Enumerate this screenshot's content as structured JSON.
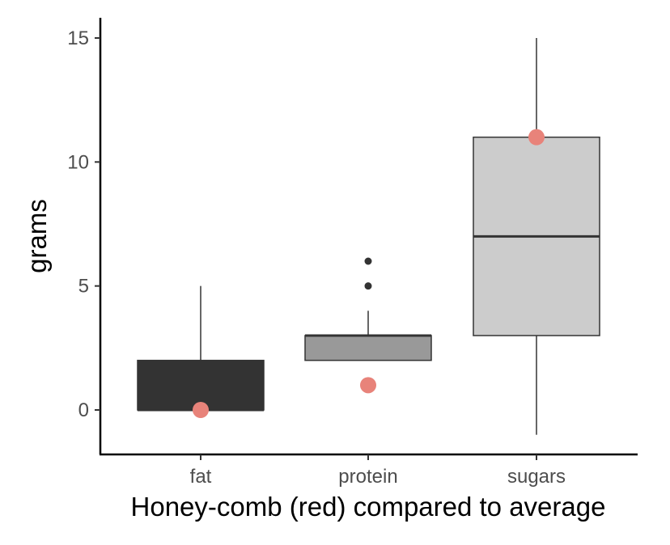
{
  "chart_data": {
    "type": "box",
    "title": "",
    "xlabel": "Honey-comb (red) compared to average",
    "ylabel": "grams",
    "categories": [
      "fat",
      "protein",
      "sugars"
    ],
    "ylim": [
      -1.8,
      15.8
    ],
    "yticks": [
      0,
      5,
      10,
      15
    ],
    "boxes": [
      {
        "category": "fat",
        "whisker_low": 0,
        "q1": 0,
        "median": 0,
        "q3": 2,
        "whisker_high": 5,
        "outliers": [],
        "fill": "#333333"
      },
      {
        "category": "protein",
        "whisker_low": 2,
        "q1": 2,
        "median": 3,
        "q3": 3,
        "whisker_high": 4,
        "outliers": [
          5,
          6
        ],
        "fill": "#999999"
      },
      {
        "category": "sugars",
        "whisker_low": -1,
        "q1": 3,
        "median": 7,
        "q3": 11,
        "whisker_high": 15,
        "outliers": [],
        "fill": "#cccccc"
      }
    ],
    "highlight": {
      "values": [
        0,
        1,
        11
      ],
      "color": "#e8837a"
    },
    "grid": false,
    "legend": "none"
  }
}
